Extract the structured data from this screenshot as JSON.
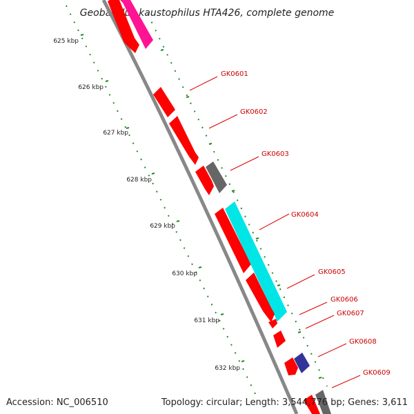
{
  "header": {
    "title": "Geobacillus kaustophilus HTA426, complete genome"
  },
  "footer": {
    "accession": "Accession: NC_006510",
    "topology": "Topology: circular; Length: 3,544,776 bp; Genes: 3,611"
  },
  "ticks": [
    "625 kbp",
    "626 kbp",
    "627 kbp",
    "628 kbp",
    "629 kbp",
    "630 kbp",
    "631 kbp",
    "632 kbp"
  ],
  "genes": [
    {
      "label": "GK0601",
      "color": "#ff0000"
    },
    {
      "label": "GK0602",
      "color": "#ff0000"
    },
    {
      "label": "GK0603",
      "color": "#666666"
    },
    {
      "label": "GK0604",
      "color": "#00e5e5"
    },
    {
      "label": "GK0605",
      "color": "#ff0000"
    },
    {
      "label": "GK0606",
      "color": "#ff0000"
    },
    {
      "label": "GK0607",
      "color": "#ff0000"
    },
    {
      "label": "GK0608",
      "color": "#333399"
    },
    {
      "label": "GK0609",
      "color": "#666666"
    }
  ],
  "colors": {
    "backbone": "#888888",
    "tick_line": "#228822",
    "label_line": "#dd0000",
    "magenta_gene": "#ff1493"
  }
}
